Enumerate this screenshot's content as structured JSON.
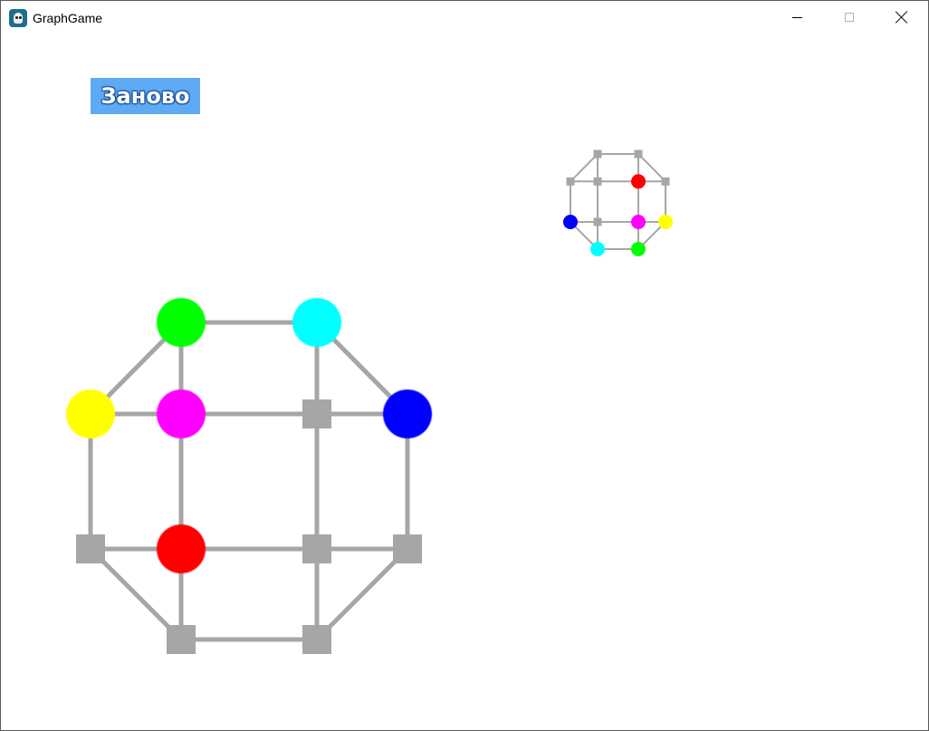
{
  "window": {
    "title": "GraphGame",
    "app_icon": "game-app-icon"
  },
  "controls": {
    "minimize_icon": "minimize-icon",
    "maximize_icon": "maximize-icon",
    "close_icon": "close-icon"
  },
  "toolbar": {
    "restart_label": "Заново",
    "restart_color": "#5faaf5"
  },
  "colors": {
    "edge": "#a6a6a6",
    "empty_node": "#a6a6a6",
    "red": "#ff0000",
    "green": "#00ff00",
    "blue": "#0000ff",
    "cyan": "#00ffff",
    "magenta": "#ff00ff",
    "yellow": "#ffff00"
  },
  "game_board": {
    "nodes": [
      {
        "id": "n1",
        "state": "green"
      },
      {
        "id": "n2",
        "state": "cyan"
      },
      {
        "id": "n3",
        "state": "yellow"
      },
      {
        "id": "n4",
        "state": "magenta"
      },
      {
        "id": "n5",
        "state": "empty"
      },
      {
        "id": "n6",
        "state": "blue"
      },
      {
        "id": "n7",
        "state": "empty"
      },
      {
        "id": "n8",
        "state": "red"
      },
      {
        "id": "n9",
        "state": "empty"
      },
      {
        "id": "n10",
        "state": "empty"
      },
      {
        "id": "n11",
        "state": "empty"
      },
      {
        "id": "n12",
        "state": "empty"
      }
    ]
  },
  "target_board": {
    "nodes": [
      {
        "id": "t1",
        "state": "empty"
      },
      {
        "id": "t2",
        "state": "empty"
      },
      {
        "id": "t3",
        "state": "empty"
      },
      {
        "id": "t4",
        "state": "empty"
      },
      {
        "id": "t5",
        "state": "red"
      },
      {
        "id": "t6",
        "state": "empty"
      },
      {
        "id": "t7",
        "state": "blue"
      },
      {
        "id": "t8",
        "state": "empty"
      },
      {
        "id": "t9",
        "state": "magenta"
      },
      {
        "id": "t10",
        "state": "yellow"
      },
      {
        "id": "t11",
        "state": "cyan"
      },
      {
        "id": "t12",
        "state": "green"
      }
    ]
  }
}
